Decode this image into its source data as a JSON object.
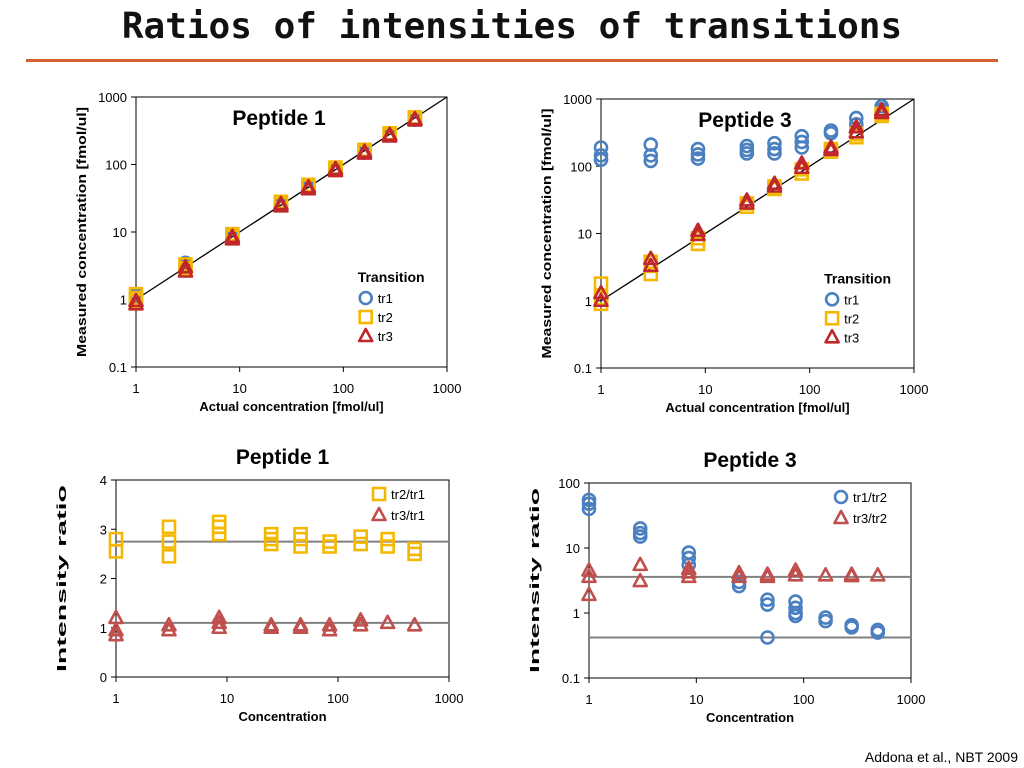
{
  "slide": {
    "title": "Ratios of intensities of transitions",
    "citation": "Addona et al., NBT 2009"
  },
  "colors": {
    "tr1": "#4a7fc0",
    "tr2": "#f5b800",
    "tr3": "#c0262a",
    "ratio1": "#4a7fc0",
    "ratio2": "#f5b800",
    "ratio3": "#c0504d"
  },
  "chart_data": [
    {
      "id": "p1-conc",
      "type": "scatter",
      "title": "Peptide 1",
      "xlabel": "Actual concentration [fmol/ul]",
      "ylabel": "Measured concentration [fmol/ul]",
      "xscale": "log",
      "yscale": "log",
      "xlim": [
        1,
        1000
      ],
      "ylim": [
        0.1,
        1000
      ],
      "xticks": [
        "1",
        "10",
        "100",
        "1000"
      ],
      "yticks": [
        "0.1",
        "1",
        "10",
        "100",
        "1000"
      ],
      "identity_line": true,
      "legend": {
        "title": "Transition",
        "position": "bottom-right"
      },
      "series": [
        {
          "name": "tr1",
          "marker": "circle",
          "color": "#4a7fc0",
          "x": [
            1,
            1,
            3,
            3,
            8.5,
            8.5,
            25,
            25,
            46,
            46,
            84,
            84,
            160,
            160,
            280,
            280,
            490,
            490
          ],
          "y": [
            1.2,
            1.1,
            3.5,
            3.1,
            9.0,
            8.2,
            27,
            25,
            48,
            45,
            88,
            83,
            160,
            150,
            280,
            270,
            480,
            460
          ]
        },
        {
          "name": "tr2",
          "marker": "square",
          "color": "#f5b800",
          "x": [
            1,
            1,
            1,
            3,
            3,
            8.5,
            8.5,
            25,
            25,
            46,
            46,
            84,
            84,
            160,
            160,
            280,
            280,
            490,
            490
          ],
          "y": [
            1.2,
            1.05,
            0.95,
            3.3,
            2.9,
            9.3,
            8.5,
            28,
            26,
            50,
            47,
            90,
            85,
            165,
            155,
            290,
            275,
            500,
            470
          ]
        },
        {
          "name": "tr3",
          "marker": "triangle",
          "color": "#c0262a",
          "x": [
            1,
            1,
            3,
            3,
            8.5,
            8.5,
            25,
            25,
            46,
            46,
            84,
            84,
            160,
            160,
            280,
            280,
            490,
            490
          ],
          "y": [
            0.95,
            0.85,
            3.0,
            2.6,
            8.5,
            7.8,
            26,
            24,
            46,
            43,
            86,
            80,
            155,
            145,
            275,
            260,
            470,
            450
          ]
        }
      ]
    },
    {
      "id": "p3-conc",
      "type": "scatter",
      "title": "Peptide 3",
      "xlabel": "Actual concentration [fmol/ul]",
      "ylabel": "Measured concentration [fmol/ul]",
      "xscale": "log",
      "yscale": "log",
      "xlim": [
        1,
        1000
      ],
      "ylim": [
        0.1,
        1000
      ],
      "xticks": [
        "1",
        "10",
        "100",
        "1000"
      ],
      "yticks": [
        "0.1",
        "1",
        "10",
        "100",
        "1000"
      ],
      "identity_line": true,
      "legend": {
        "title": "Transition",
        "position": "bottom-right"
      },
      "series": [
        {
          "name": "tr1",
          "marker": "circle",
          "color": "#4a7fc0",
          "x": [
            1,
            1,
            1,
            3,
            3,
            3,
            8.5,
            8.5,
            8.5,
            25,
            25,
            25,
            46,
            46,
            46,
            84,
            84,
            84,
            160,
            160,
            280,
            280,
            490,
            490
          ],
          "y": [
            190,
            145,
            125,
            210,
            145,
            120,
            180,
            150,
            130,
            200,
            175,
            155,
            220,
            180,
            155,
            280,
            230,
            190,
            340,
            310,
            520,
            420,
            780,
            700
          ]
        },
        {
          "name": "tr2",
          "marker": "square",
          "color": "#f5b800",
          "x": [
            1,
            1,
            1,
            3,
            3,
            3,
            8.5,
            8.5,
            25,
            25,
            46,
            46,
            84,
            84,
            160,
            160,
            280,
            280,
            490,
            490
          ],
          "y": [
            1.8,
            1.1,
            0.9,
            3.8,
            3.3,
            2.5,
            8.5,
            7.0,
            28,
            25,
            50,
            46,
            90,
            78,
            180,
            165,
            300,
            270,
            600,
            560
          ]
        },
        {
          "name": "tr3",
          "marker": "triangle",
          "color": "#c0262a",
          "x": [
            1,
            1,
            3,
            3,
            8.5,
            8.5,
            25,
            25,
            46,
            46,
            84,
            84,
            160,
            160,
            280,
            280,
            490,
            490
          ],
          "y": [
            1.3,
            1.0,
            4.2,
            3.3,
            11,
            9.5,
            31,
            28,
            55,
            50,
            110,
            95,
            190,
            175,
            380,
            320,
            680,
            620
          ]
        }
      ]
    },
    {
      "id": "p1-ratio",
      "type": "scatter",
      "title": "Peptide 1",
      "xlabel": "Concentration",
      "ylabel": "Intensity ratio",
      "xscale": "log",
      "yscale": "linear",
      "xlim": [
        1,
        1000
      ],
      "ylim": [
        0,
        4
      ],
      "xticks": [
        "1",
        "10",
        "100",
        "1000"
      ],
      "yticks": [
        "0",
        "1",
        "2",
        "3",
        "4"
      ],
      "hlines": [
        2.75,
        1.1
      ],
      "legend": {
        "position": "top-right"
      },
      "series": [
        {
          "name": "tr2/tr1",
          "marker": "square",
          "color": "#f5b800",
          "x": [
            1,
            1,
            3,
            3,
            3,
            8.5,
            8.5,
            8.5,
            25,
            25,
            25,
            46,
            46,
            46,
            84,
            84,
            160,
            160,
            280,
            280,
            490,
            490
          ],
          "y": [
            2.8,
            2.55,
            3.05,
            2.75,
            2.45,
            3.15,
            3.05,
            2.9,
            2.9,
            2.8,
            2.7,
            2.9,
            2.8,
            2.65,
            2.75,
            2.65,
            2.85,
            2.7,
            2.8,
            2.65,
            2.6,
            2.5
          ]
        },
        {
          "name": "tr3/tr1",
          "marker": "triangle",
          "color": "#c0504d",
          "x": [
            1,
            1,
            1,
            3,
            3,
            8.5,
            8.5,
            8.5,
            25,
            25,
            46,
            46,
            84,
            84,
            160,
            160,
            280,
            490
          ],
          "y": [
            1.2,
            0.95,
            0.85,
            1.05,
            0.95,
            1.2,
            1.1,
            1.0,
            1.05,
            1.0,
            1.05,
            1.0,
            1.05,
            0.95,
            1.15,
            1.05,
            1.1,
            1.05
          ]
        }
      ]
    },
    {
      "id": "p3-ratio",
      "type": "scatter",
      "title": "Peptide 3",
      "xlabel": "Concentration",
      "ylabel": "Intensity ratio",
      "xscale": "log",
      "yscale": "log",
      "xlim": [
        1,
        1000
      ],
      "ylim": [
        0.1,
        100
      ],
      "xticks": [
        "1",
        "10",
        "100",
        "1000"
      ],
      "yticks": [
        "0.1",
        "1",
        "10",
        "100"
      ],
      "hlines": [
        3.6,
        0.42
      ],
      "legend": {
        "position": "top-right"
      },
      "series": [
        {
          "name": "tr1/tr2",
          "marker": "circle",
          "color": "#4a7fc0",
          "x": [
            1,
            1,
            1,
            3,
            3,
            3,
            8.5,
            8.5,
            8.5,
            25,
            25,
            46,
            46,
            46,
            84,
            84,
            84,
            84,
            160,
            160,
            280,
            280,
            490,
            490
          ],
          "y": [
            55,
            48,
            40,
            20,
            17,
            15,
            8.5,
            7,
            5.5,
            3.0,
            2.6,
            1.6,
            1.35,
            0.42,
            1.5,
            1.2,
            1.0,
            0.9,
            0.85,
            0.75,
            0.65,
            0.6,
            0.55,
            0.5
          ]
        },
        {
          "name": "tr3/tr2",
          "marker": "triangle",
          "color": "#c0504d",
          "x": [
            1,
            1,
            1,
            3,
            3,
            8.5,
            8.5,
            8.5,
            25,
            25,
            46,
            46,
            84,
            84,
            160,
            280,
            280,
            490
          ],
          "y": [
            4.5,
            3.6,
            1.9,
            5.5,
            3.1,
            4.8,
            4.2,
            3.6,
            4.1,
            3.6,
            3.9,
            3.6,
            4.5,
            3.8,
            3.8,
            3.9,
            3.7,
            3.8
          ]
        }
      ]
    }
  ]
}
